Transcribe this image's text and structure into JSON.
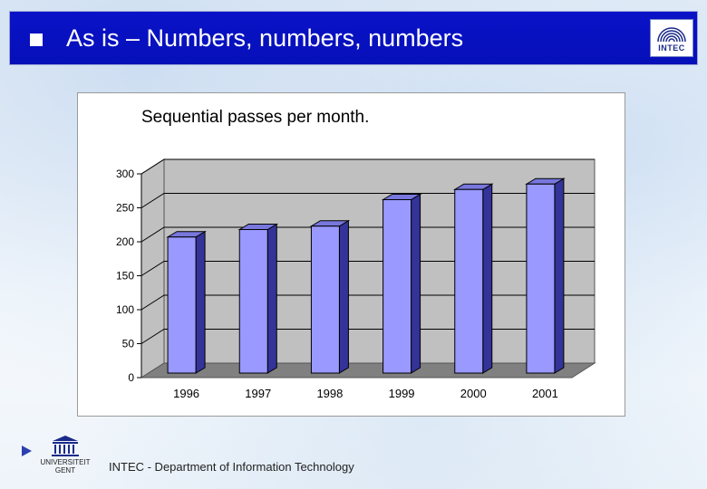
{
  "slide": {
    "title": "As is – Numbers, numbers, numbers",
    "logo_text": "INTEC",
    "footer_text": "INTEC - Department of Information Technology",
    "university_logo_text_1": "UNIVERSITEIT",
    "university_logo_text_2": "GENT"
  },
  "colors": {
    "title_bar": "#0610b8",
    "bar_front": "#9999ff",
    "bar_top": "#7777dd",
    "bar_side": "#333399",
    "chart_wall": "#c0c0c0"
  },
  "chart_data": {
    "type": "bar",
    "title": "Sequential passes per month.",
    "categories": [
      "1996",
      "1997",
      "1998",
      "1999",
      "2000",
      "2001"
    ],
    "values": [
      207,
      218,
      223,
      262,
      277,
      285
    ],
    "ylim": [
      0,
      300
    ],
    "yticks": [
      "0",
      "50",
      "100",
      "150",
      "200",
      "250",
      "300"
    ],
    "xlabel": "",
    "ylabel": "",
    "grid": true,
    "three_d": true
  }
}
